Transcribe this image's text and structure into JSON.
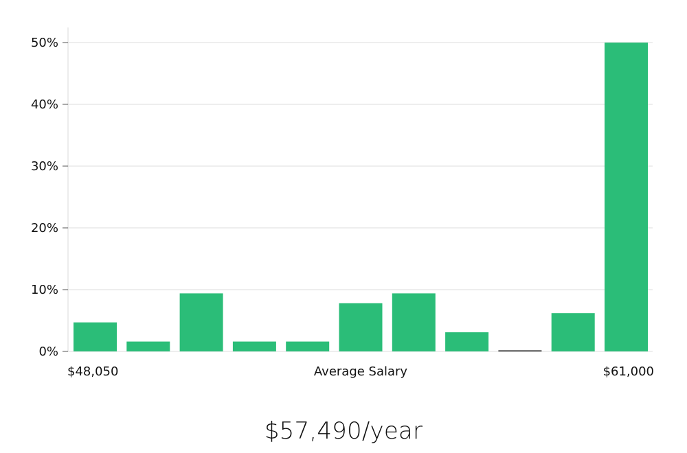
{
  "chart_data": {
    "type": "bar",
    "xlabel": "Average Salary",
    "x_range_labels": {
      "min": "$48,050",
      "max": "$61,000"
    },
    "ylim": [
      0,
      50
    ],
    "y_ticks": [
      {
        "value": 0,
        "label": "0%"
      },
      {
        "value": 10,
        "label": "10%"
      },
      {
        "value": 20,
        "label": "20%"
      },
      {
        "value": 30,
        "label": "30%"
      },
      {
        "value": 40,
        "label": "40%"
      },
      {
        "value": 50,
        "label": "50%"
      }
    ],
    "values": [
      4.7,
      1.6,
      9.4,
      1.6,
      1.6,
      7.8,
      9.4,
      3.1,
      0,
      6.2,
      50
    ],
    "grid": true,
    "bar_color": "#2bbd78",
    "zero_bar_color": "#111111"
  },
  "caption": "$57,490/year"
}
